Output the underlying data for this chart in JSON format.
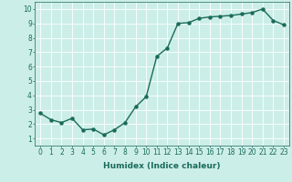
{
  "x": [
    0,
    1,
    2,
    3,
    4,
    5,
    6,
    7,
    8,
    9,
    10,
    11,
    12,
    13,
    14,
    15,
    16,
    17,
    18,
    19,
    20,
    21,
    22,
    23
  ],
  "y": [
    2.75,
    2.3,
    2.1,
    2.4,
    1.6,
    1.65,
    1.25,
    1.6,
    2.1,
    3.2,
    3.9,
    6.7,
    7.3,
    9.0,
    9.05,
    9.35,
    9.45,
    9.5,
    9.55,
    9.65,
    9.75,
    10.0,
    9.2,
    8.9
  ],
  "line_color": "#1a6b5a",
  "marker": "o",
  "markersize": 2.2,
  "linewidth": 1.0,
  "bg_color": "#cceee8",
  "grid_color": "#ffffff",
  "xlabel": "Humidex (Indice chaleur)",
  "ylabel": "",
  "xlim": [
    -0.5,
    23.5
  ],
  "ylim": [
    0.5,
    10.5
  ],
  "yticks": [
    1,
    2,
    3,
    4,
    5,
    6,
    7,
    8,
    9,
    10
  ],
  "xticks": [
    0,
    1,
    2,
    3,
    4,
    5,
    6,
    7,
    8,
    9,
    10,
    11,
    12,
    13,
    14,
    15,
    16,
    17,
    18,
    19,
    20,
    21,
    22,
    23
  ],
  "tick_color": "#1a6b5a",
  "label_fontsize": 6.5,
  "tick_fontsize": 5.5,
  "spine_color": "#1a6b5a",
  "linestyle": "-"
}
